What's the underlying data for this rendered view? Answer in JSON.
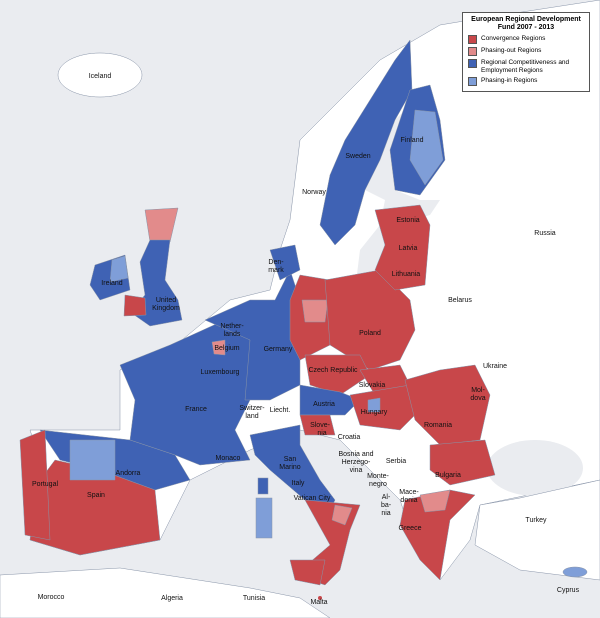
{
  "legend": {
    "title": "European Regional Development Fund 2007 - 2013",
    "items": [
      {
        "label": "Convergence Regions",
        "color": "#c8474a"
      },
      {
        "label": "Phasing-out Regions",
        "color": "#e28b8b"
      },
      {
        "label": "Regional Competitiveness and Employment Regions",
        "color": "#3f62b4"
      },
      {
        "label": "Phasing-in Regions",
        "color": "#7f9ed8"
      }
    ]
  },
  "colors": {
    "sea": "#eaecf0",
    "land": "#ffffff"
  },
  "labels": {
    "iceland": "Iceland",
    "norway": "Norway",
    "sweden": "Sweden",
    "finland": "Finland",
    "russia": "Russia",
    "estonia": "Estonia",
    "latvia": "Latvia",
    "lithuania": "Lithuania",
    "belarus": "Belarus",
    "denmark1": "Den-",
    "denmark2": "mark",
    "ireland": "Ireland",
    "uk1": "United",
    "uk2": "Kingdom",
    "netherlands1": "Nether-",
    "netherlands2": "lands",
    "belgium": "Belgium",
    "luxembourg": "Luxembourg",
    "germany": "Germany",
    "poland": "Poland",
    "czech": "Czech Republic",
    "slovakia": "Slovakia",
    "ukraine": "Ukraine",
    "moldova1": "Mol-",
    "moldova2": "dova",
    "france": "France",
    "switzerland1": "Switzer-",
    "switzerland2": "land",
    "liecht": "Liecht.",
    "austria": "Austria",
    "hungary": "Hungary",
    "romania": "Romania",
    "slovenia1": "Slove-",
    "slovenia2": "nia",
    "croatia": "Croatia",
    "bosnia1": "Bosnia and",
    "bosnia2": "Herzego-",
    "bosnia3": "vina",
    "serbia": "Serbia",
    "montenegro1": "Monte-",
    "montenegro2": "negro",
    "bulgaria": "Bulgaria",
    "macedonia1": "Mace-",
    "macedonia2": "donia",
    "albania1": "Al-",
    "albania2": "ba-",
    "albania3": "nia",
    "greece": "Greece",
    "turkey": "Turkey",
    "cyprus": "Cyprus",
    "malta": "Malta",
    "italy": "Italy",
    "sanmarino1": "San",
    "sanmarino2": "Marino",
    "vatican": "Vatican City",
    "monaco": "Monaco",
    "andorra": "Andorra",
    "spain": "Spain",
    "portugal": "Portugal",
    "morocco": "Morocco",
    "algeria": "Algeria",
    "tunisia": "Tunisia"
  }
}
